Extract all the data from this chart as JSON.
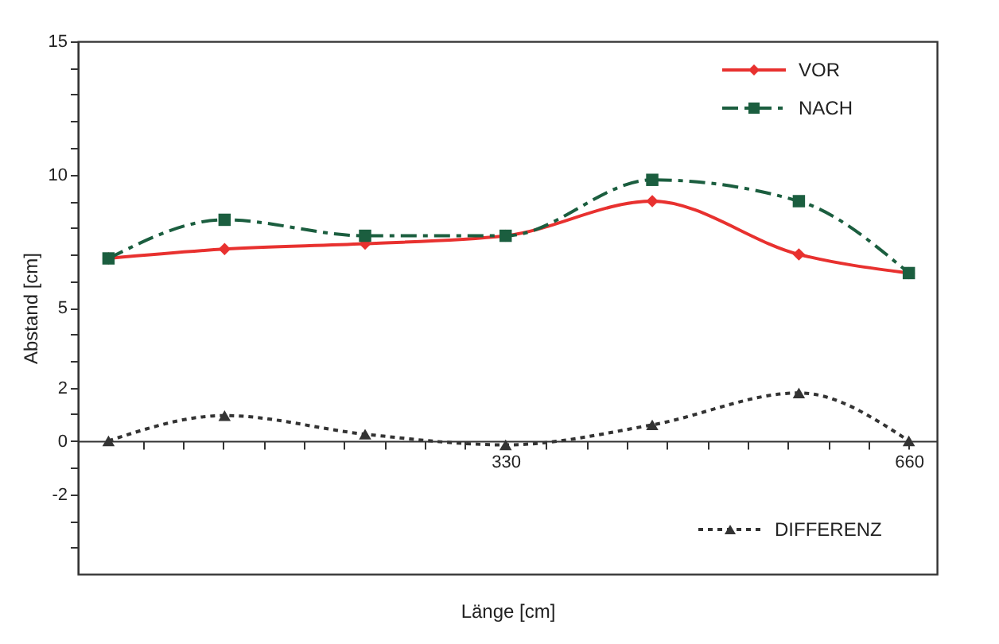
{
  "chart_data": {
    "type": "line",
    "xlabel": "Länge [cm]",
    "ylabel": "Abstand [cm]",
    "xlim": [
      -20,
      683
    ],
    "ylim": [
      -5,
      15
    ],
    "xticks": [
      {
        "value": 33,
        "label": null
      },
      {
        "value": 66,
        "label": null
      },
      {
        "value": 99,
        "label": null
      },
      {
        "value": 132,
        "label": null
      },
      {
        "value": 165,
        "label": null
      },
      {
        "value": 198,
        "label": null
      },
      {
        "value": 231,
        "label": null
      },
      {
        "value": 264,
        "label": null
      },
      {
        "value": 297,
        "label": null
      },
      330,
      {
        "value": 363,
        "label": null
      },
      {
        "value": 396,
        "label": null
      },
      {
        "value": 429,
        "label": null
      },
      {
        "value": 462,
        "label": null
      },
      {
        "value": 495,
        "label": null
      },
      {
        "value": 528,
        "label": null
      },
      {
        "value": 561,
        "label": null
      },
      {
        "value": 594,
        "label": null
      },
      {
        "value": 627,
        "label": null
      },
      660
    ],
    "yticks": [
      {
        "value": -4,
        "label": null
      },
      {
        "value": -3,
        "label": null
      },
      -2,
      {
        "value": -1,
        "label": null
      },
      0,
      {
        "value": 1,
        "label": null
      },
      2,
      {
        "value": 3,
        "label": null
      },
      {
        "value": 4,
        "label": null
      },
      5,
      {
        "value": 6,
        "label": null
      },
      {
        "value": 7,
        "label": null
      },
      {
        "value": 8,
        "label": null
      },
      {
        "value": 9,
        "label": null
      },
      10,
      {
        "value": 11,
        "label": null
      },
      {
        "value": 12,
        "label": null
      },
      {
        "value": 13,
        "label": null
      },
      {
        "value": 14,
        "label": null
      },
      15
    ],
    "x": [
      5,
      100,
      215,
      330,
      450,
      570,
      660
    ],
    "grid": false,
    "legend": "top right",
    "series": [
      {
        "name": "VOR",
        "color": "#e8312f",
        "marker": "diamond",
        "line_style": "solid",
        "values": [
          6.85,
          7.2,
          7.4,
          7.7,
          9.0,
          7.0,
          6.3
        ]
      },
      {
        "name": "NACH",
        "color": "#1b5e3f",
        "marker": "square",
        "line_style": "dashed",
        "values": [
          6.85,
          8.3,
          7.7,
          7.7,
          9.8,
          9.0,
          6.3
        ]
      },
      {
        "name": "DIFFERENZ",
        "color": "#333333",
        "marker": "triangle",
        "line_style": "dotted",
        "values": [
          0,
          0.95,
          0.25,
          -0.15,
          0.6,
          1.8,
          0
        ]
      }
    ]
  }
}
